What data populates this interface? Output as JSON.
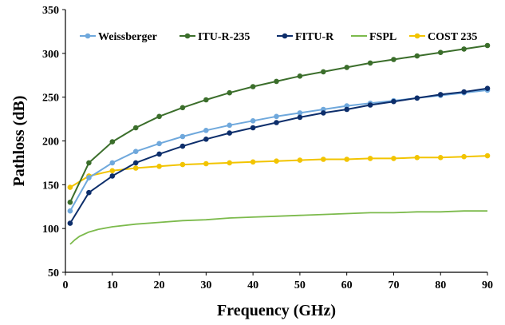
{
  "chart_data": {
    "type": "line",
    "title": "",
    "xlabel": "Frequency (GHz)",
    "ylabel": "Pathloss (dB)",
    "xlim": [
      0,
      90
    ],
    "ylim": [
      50,
      350
    ],
    "xticks": [
      "0",
      "10",
      "20",
      "30",
      "40",
      "50",
      "60",
      "70",
      "80",
      "90"
    ],
    "yticks": [
      "50",
      "100",
      "150",
      "200",
      "250",
      "300",
      "350"
    ],
    "grid": false,
    "legend_position": "top",
    "series": [
      {
        "name": "Weissberger",
        "color": "#6fa8dc",
        "markers": true,
        "x": [
          1,
          5,
          10,
          15,
          20,
          25,
          30,
          35,
          40,
          45,
          50,
          55,
          60,
          65,
          70,
          75,
          80,
          85,
          90
        ],
        "y": [
          120,
          158,
          175,
          188,
          197,
          205,
          212,
          218,
          223,
          228,
          232,
          236,
          240,
          243,
          246,
          249,
          252,
          255,
          258
        ]
      },
      {
        "name": "ITU-R-235",
        "color": "#3b6e2b",
        "markers": true,
        "x": [
          1,
          5,
          10,
          15,
          20,
          25,
          30,
          35,
          40,
          45,
          50,
          55,
          60,
          65,
          70,
          75,
          80,
          85,
          90
        ],
        "y": [
          130,
          175,
          199,
          215,
          228,
          238,
          247,
          255,
          262,
          268,
          274,
          279,
          284,
          289,
          293,
          297,
          301,
          305,
          309
        ]
      },
      {
        "name": "FITU-R",
        "color": "#0d2e6b",
        "markers": true,
        "x": [
          1,
          5,
          10,
          15,
          20,
          25,
          30,
          35,
          40,
          45,
          50,
          55,
          60,
          65,
          70,
          75,
          80,
          85,
          90
        ],
        "y": [
          106,
          141,
          160,
          175,
          185,
          194,
          202,
          209,
          215,
          221,
          227,
          232,
          236,
          241,
          245,
          249,
          253,
          256,
          260
        ]
      },
      {
        "name": "FSPL",
        "color": "#7cba4c",
        "markers": false,
        "x": [
          1,
          2,
          3,
          5,
          7,
          10,
          15,
          20,
          25,
          30,
          35,
          40,
          45,
          50,
          55,
          60,
          65,
          70,
          75,
          80,
          85,
          90
        ],
        "y": [
          82,
          87,
          91,
          96,
          99,
          102,
          105,
          107,
          109,
          110,
          112,
          113,
          114,
          115,
          116,
          117,
          118,
          118,
          119,
          119,
          120,
          120
        ]
      },
      {
        "name": "COST 235",
        "color": "#f2c400",
        "markers": true,
        "x": [
          1,
          5,
          10,
          15,
          20,
          25,
          30,
          35,
          40,
          45,
          50,
          55,
          60,
          65,
          70,
          75,
          80,
          85,
          90
        ],
        "y": [
          147,
          160,
          166,
          169,
          171,
          173,
          174,
          175,
          176,
          177,
          178,
          179,
          179,
          180,
          180,
          181,
          181,
          182,
          183
        ]
      }
    ]
  }
}
